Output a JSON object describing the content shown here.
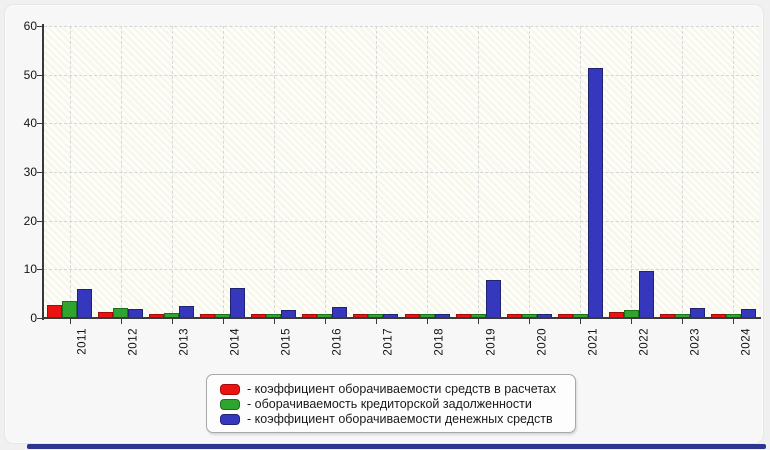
{
  "window": {
    "background": "#f0f0f0",
    "bottom_bar_color": "#2c3590"
  },
  "chart_data": {
    "type": "bar",
    "title": "",
    "categories": [
      "2011",
      "2012",
      "2013",
      "2014",
      "2015",
      "2016",
      "2017",
      "2018",
      "2019",
      "2020",
      "2021",
      "2022",
      "2023",
      "2024"
    ],
    "series": [
      {
        "name": "коэффициент оборачиваемости средств в расчетах",
        "color": "#ed1212",
        "border_color": "#a30b0b",
        "values": [
          2.2,
          0.8,
          0.4,
          0.4,
          0.3,
          0.3,
          0.3,
          0.2,
          0.3,
          0.2,
          0.3,
          0.8,
          0.2,
          0.2
        ]
      },
      {
        "name": "оборачиваемость кредиторской задолженности",
        "color": "#2fa52f",
        "border_color": "#1c701c",
        "values": [
          3.0,
          1.7,
          0.6,
          0.4,
          0.2,
          0.3,
          0.3,
          0.3,
          0.3,
          0.2,
          0.3,
          1.3,
          0.4,
          0.4
        ]
      },
      {
        "name": "коэффициент оборачиваемости денежных средств",
        "color": "#3538bd",
        "border_color": "#22236f",
        "values": [
          5.5,
          1.5,
          2.0,
          5.7,
          1.3,
          1.8,
          0.4,
          0.3,
          7.3,
          0.3,
          51.0,
          9.2,
          1.7,
          1.5
        ]
      }
    ],
    "ylim": [
      0,
      60
    ],
    "yticks": [
      "0",
      "10",
      "20",
      "30",
      "40",
      "50",
      "60"
    ],
    "grid": true,
    "plot_background": "hatched-cream",
    "legend_position": "bottom-center"
  },
  "legend": {
    "items": [
      {
        "label": "- коэффициент оборачиваемости средств в расчетах"
      },
      {
        "label": "- оборачиваемость кредиторской задолженности"
      },
      {
        "label": "- коэффициент оборачиваемости денежных средств"
      }
    ]
  }
}
